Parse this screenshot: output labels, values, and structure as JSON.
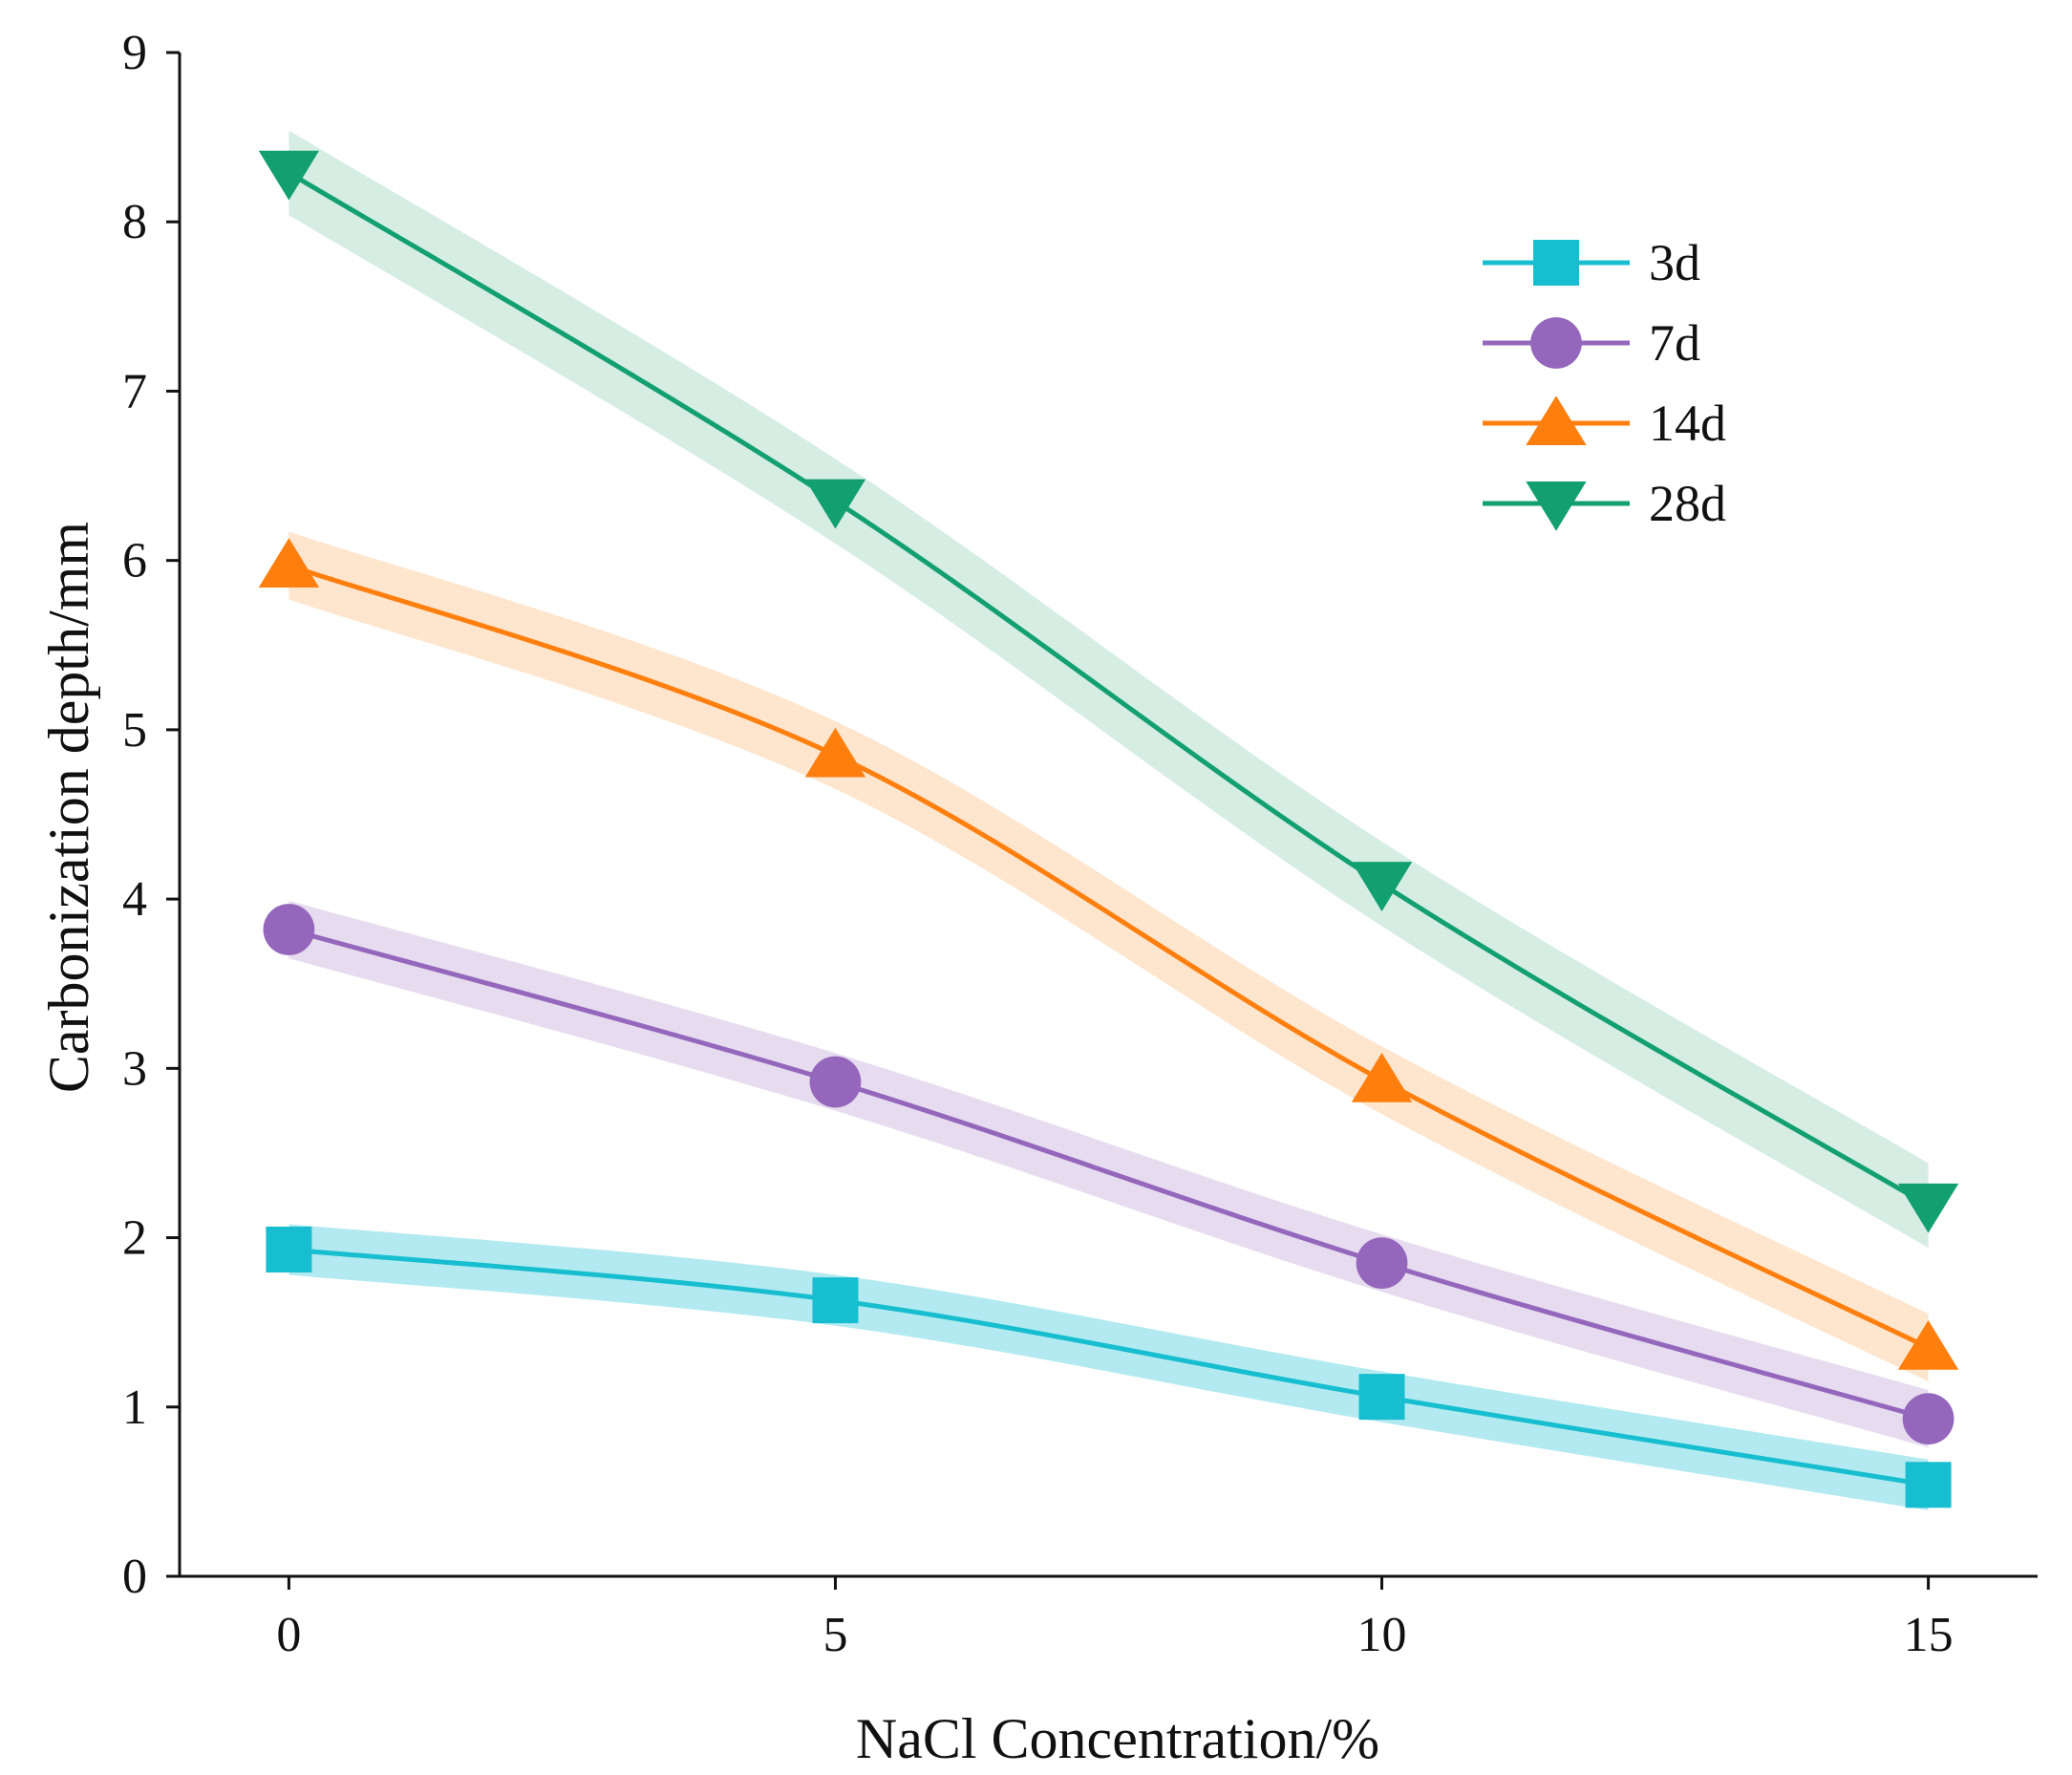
{
  "chart_data": {
    "type": "line",
    "title": "",
    "xlabel": "NaCl Concentration/%",
    "ylabel": "Carbonization depth/mm",
    "x": [
      0,
      5,
      10,
      15
    ],
    "x_ticks": [
      "0",
      "5",
      "10",
      "15"
    ],
    "xlim": [
      -1,
      16
    ],
    "ylim": [
      0,
      9
    ],
    "y_ticks": [
      "0",
      "1",
      "2",
      "3",
      "4",
      "5",
      "6",
      "7",
      "8",
      "9"
    ],
    "grid": false,
    "legend_position": "top-right",
    "series": [
      {
        "name": "3d",
        "values": [
          1.93,
          1.63,
          1.06,
          0.54
        ],
        "band": 0.15,
        "marker": "square",
        "color": "#17becf",
        "band_color": "#a6e6ef"
      },
      {
        "name": "7d",
        "values": [
          3.82,
          2.92,
          1.85,
          0.93
        ],
        "band": 0.17,
        "marker": "circle",
        "color": "#9467bd",
        "band_color": "#e3d6ec"
      },
      {
        "name": "14d",
        "values": [
          5.97,
          4.85,
          2.93,
          1.35
        ],
        "band": 0.2,
        "marker": "triangle-up",
        "color": "#ff7f0e",
        "band_color": "#fde0c6"
      },
      {
        "name": "28d",
        "values": [
          8.29,
          6.35,
          4.09,
          2.19
        ],
        "band": 0.25,
        "marker": "triangle-down",
        "color": "#13a070",
        "band_color": "#cfeadf"
      }
    ]
  }
}
